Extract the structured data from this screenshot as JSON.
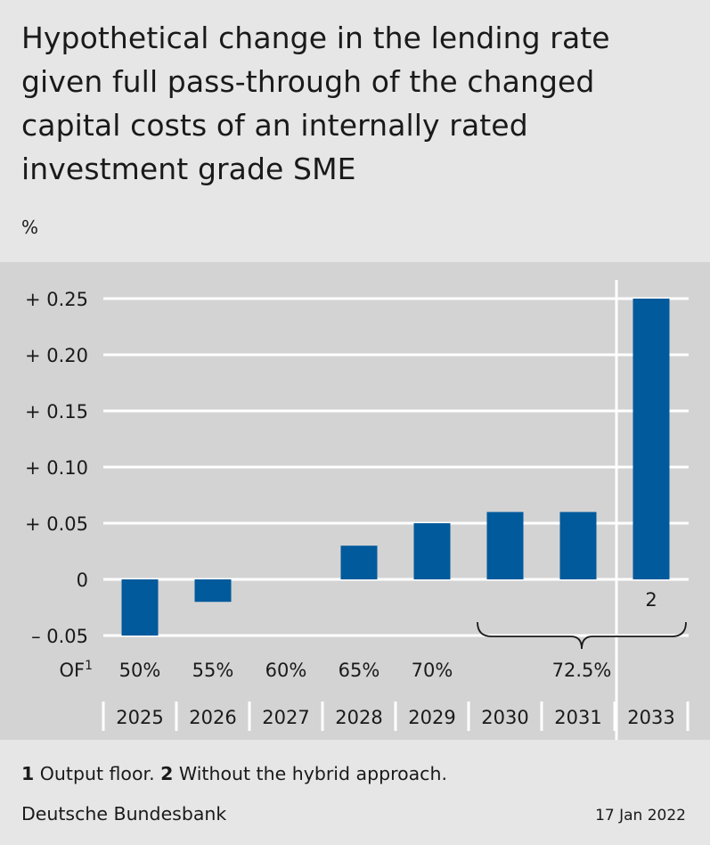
{
  "title": "Hypothetical change in the lending rate given full pass-through of the changed capital costs of an internally rated investment grade SME",
  "unit": "%",
  "chart_data": {
    "type": "bar",
    "categories": [
      "2025",
      "2026",
      "2027",
      "2028",
      "2029",
      "2030",
      "2031",
      "2033"
    ],
    "values": [
      -0.05,
      -0.02,
      0,
      0.03,
      0.05,
      0.06,
      0.06,
      0.25
    ],
    "y_ticks": [
      -0.05,
      0,
      0.05,
      0.1,
      0.15,
      0.2,
      0.25
    ],
    "y_tick_labels": [
      "– 0.05",
      "0",
      "+ 0.05",
      "+ 0.10",
      "+ 0.15",
      "+ 0.20",
      "+ 0.25"
    ],
    "ylim": [
      -0.05,
      0.25
    ],
    "grid": true,
    "bar_color": "#005a9c",
    "output_floor_label": "OF",
    "output_floor_sup": "1",
    "output_floor_values": [
      "50%",
      "55%",
      "60%",
      "65%",
      "70%",
      "72.5%"
    ],
    "bar_note": "2"
  },
  "footnote": {
    "n1": "1",
    "t1": "Output floor.",
    "n2": "2",
    "t2": "Without the hybrid approach."
  },
  "source": "Deutsche Bundesbank",
  "date": "17 Jan 2022"
}
